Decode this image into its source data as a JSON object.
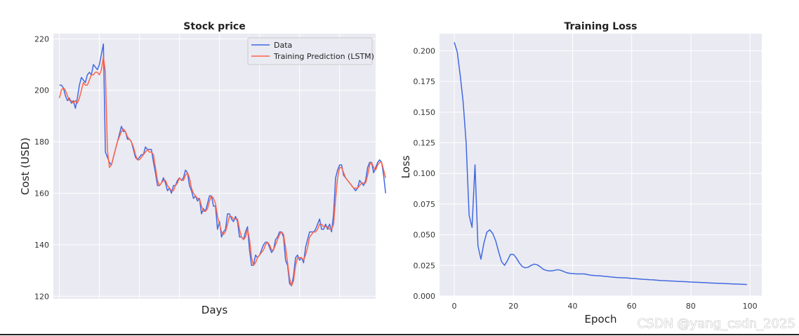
{
  "chart_data": [
    {
      "type": "line",
      "title": "Stock price",
      "xlabel": "Days",
      "ylabel": "Cost (USD)",
      "xlim": [
        -3,
        158
      ],
      "ylim": [
        119,
        222
      ],
      "yticks": [
        120,
        140,
        160,
        180,
        200,
        220
      ],
      "xgrid": [
        0,
        20,
        40,
        60,
        80,
        100,
        120,
        140
      ],
      "grid": true,
      "legend_position": "top-right",
      "series": [
        {
          "name": "Data",
          "color": "#4169e1",
          "values": [
            202,
            202,
            201,
            198,
            196,
            197,
            195,
            196,
            193,
            197,
            202,
            205,
            204,
            203,
            206,
            207,
            206,
            210,
            209,
            208,
            210,
            214,
            218,
            176,
            174,
            172,
            171,
            174,
            177,
            180,
            183,
            186,
            184,
            184,
            181,
            181,
            180,
            177,
            174,
            173,
            174,
            175,
            175,
            178,
            177,
            177,
            177,
            172,
            168,
            163,
            163,
            164,
            166,
            164,
            161,
            162,
            160,
            163,
            163,
            165,
            166,
            165,
            166,
            169,
            168,
            163,
            161,
            158,
            159,
            157,
            158,
            152,
            154,
            153,
            156,
            159,
            159,
            155,
            155,
            146,
            149,
            143,
            145,
            146,
            152,
            152,
            150,
            149,
            151,
            149,
            143,
            143,
            142,
            145,
            147,
            138,
            132,
            132,
            136,
            135,
            136,
            138,
            140,
            141,
            141,
            139,
            137,
            138,
            142,
            143,
            145,
            145,
            143,
            134,
            132,
            125,
            124,
            128,
            135,
            136,
            134,
            135,
            133,
            139,
            142,
            145,
            145,
            145,
            146,
            148,
            150,
            146,
            146,
            148,
            146,
            148,
            145,
            152,
            166,
            169,
            171,
            171,
            167,
            166,
            165,
            164,
            163,
            162,
            161,
            162,
            165,
            164,
            163,
            165,
            170,
            172,
            172,
            168,
            170,
            172,
            173,
            172,
            167,
            160
          ]
        },
        {
          "name": "Training Prediction (LSTM)",
          "color": "#ff6347",
          "values": [
            197,
            200,
            201,
            200,
            198,
            196,
            196,
            195,
            196,
            195,
            197,
            200,
            203,
            202,
            202,
            204,
            206,
            206,
            207,
            207,
            206,
            208,
            213,
            207,
            177,
            170,
            171,
            174,
            177,
            180,
            182,
            184,
            185,
            184,
            182,
            181,
            180,
            178,
            175,
            173,
            173,
            174,
            175,
            176,
            177,
            176,
            176,
            175,
            170,
            165,
            163,
            164,
            165,
            165,
            163,
            162,
            161,
            161,
            163,
            164,
            166,
            165,
            165,
            167,
            168,
            166,
            162,
            160,
            159,
            158,
            158,
            155,
            153,
            153,
            154,
            157,
            159,
            158,
            156,
            151,
            148,
            145,
            144,
            145,
            148,
            151,
            151,
            150,
            150,
            150,
            146,
            143,
            142,
            143,
            146,
            142,
            135,
            132,
            133,
            135,
            136,
            137,
            138,
            140,
            141,
            140,
            138,
            138,
            140,
            142,
            144,
            145,
            144,
            139,
            133,
            127,
            124,
            126,
            132,
            135,
            135,
            135,
            134,
            136,
            139,
            143,
            144,
            145,
            145,
            146,
            148,
            148,
            147,
            147,
            147,
            146,
            146,
            148,
            158,
            166,
            170,
            170,
            168,
            166,
            165,
            164,
            163,
            162,
            162,
            162,
            163,
            164,
            164,
            164,
            167,
            171,
            172,
            170,
            169,
            171,
            172,
            172,
            169,
            166
          ]
        }
      ]
    },
    {
      "type": "line",
      "title": "Training Loss",
      "xlabel": "Epoch",
      "ylabel": "Loss",
      "xlim": [
        -5,
        104
      ],
      "ylim": [
        0,
        0.214
      ],
      "xticks": [
        0,
        20,
        40,
        60,
        80,
        100
      ],
      "yticks": [
        0.0,
        0.025,
        0.05,
        0.075,
        0.1,
        0.125,
        0.15,
        0.175,
        0.2
      ],
      "ytick_labels": [
        "0.000",
        "0.025",
        "0.050",
        "0.075",
        "0.100",
        "0.125",
        "0.150",
        "0.175",
        "0.200"
      ],
      "grid": true,
      "series": [
        {
          "color": "#4169e1",
          "x": [
            0,
            1,
            2,
            3,
            4,
            5,
            6,
            7,
            8,
            9,
            10,
            11,
            12,
            13,
            14,
            15,
            16,
            17,
            18,
            19,
            20,
            21,
            22,
            23,
            24,
            25,
            26,
            27,
            28,
            29,
            30,
            31,
            32,
            33,
            34,
            35,
            36,
            37,
            38,
            39,
            40,
            41,
            42,
            43,
            44,
            45,
            46,
            47,
            48,
            49,
            50,
            51,
            52,
            53,
            54,
            55,
            56,
            57,
            58,
            59,
            60,
            61,
            62,
            63,
            64,
            65,
            66,
            67,
            68,
            69,
            70,
            71,
            72,
            73,
            74,
            75,
            76,
            77,
            78,
            79,
            80,
            81,
            82,
            83,
            84,
            85,
            86,
            87,
            88,
            89,
            90,
            91,
            92,
            93,
            94,
            95,
            96,
            97,
            98,
            99
          ],
          "values": [
            0.207,
            0.199,
            0.18,
            0.158,
            0.125,
            0.066,
            0.056,
            0.107,
            0.041,
            0.03,
            0.043,
            0.052,
            0.054,
            0.051,
            0.045,
            0.036,
            0.028,
            0.025,
            0.029,
            0.034,
            0.034,
            0.031,
            0.027,
            0.024,
            0.023,
            0.0235,
            0.025,
            0.026,
            0.0255,
            0.024,
            0.022,
            0.021,
            0.0205,
            0.0205,
            0.021,
            0.0215,
            0.021,
            0.02,
            0.019,
            0.0185,
            0.0183,
            0.0181,
            0.018,
            0.018,
            0.018,
            0.0175,
            0.017,
            0.0168,
            0.0166,
            0.0165,
            0.0163,
            0.016,
            0.0158,
            0.0155,
            0.0153,
            0.0151,
            0.015,
            0.0149,
            0.0148,
            0.0146,
            0.0144,
            0.0142,
            0.014,
            0.0138,
            0.0136,
            0.0135,
            0.0133,
            0.0132,
            0.013,
            0.0128,
            0.0126,
            0.0125,
            0.0124,
            0.0123,
            0.0122,
            0.012,
            0.0119,
            0.0118,
            0.0117,
            0.0116,
            0.0114,
            0.0113,
            0.0112,
            0.0111,
            0.011,
            0.0109,
            0.0107,
            0.0106,
            0.0105,
            0.0104,
            0.0103,
            0.0102,
            0.0101,
            0.01,
            0.0099,
            0.0098,
            0.0097,
            0.0096,
            0.0095,
            0.0094
          ]
        }
      ]
    }
  ],
  "watermark": "CSDN @yang_csdn_2025"
}
